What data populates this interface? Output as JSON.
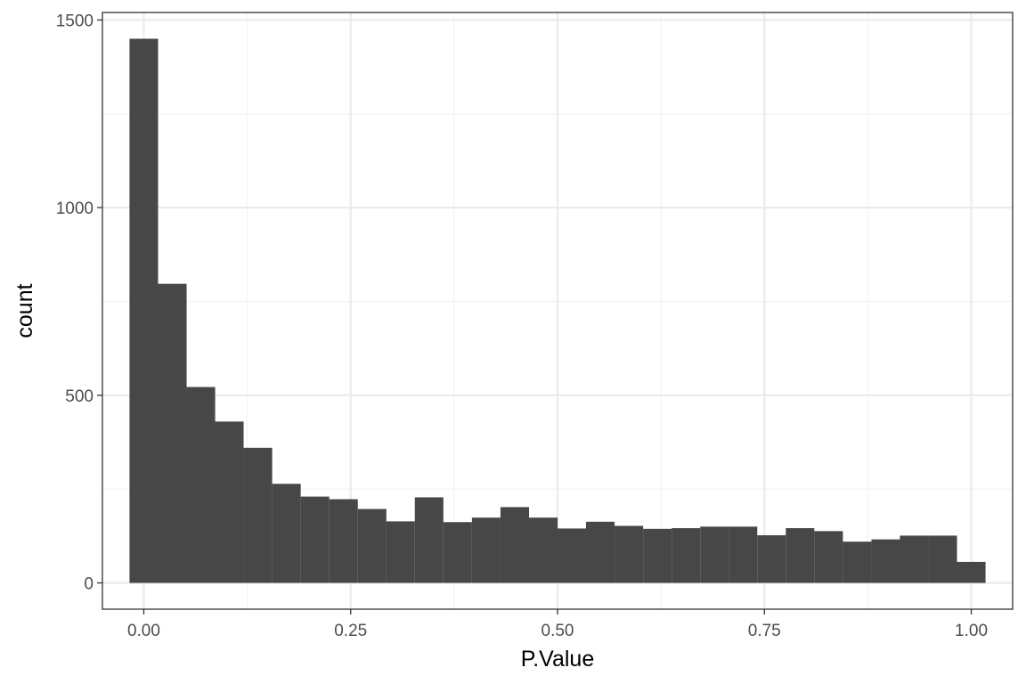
{
  "chart_data": {
    "type": "bar",
    "subtype": "histogram",
    "title": "",
    "xlabel": "P.Value",
    "ylabel": "count",
    "xlim": [
      -0.05,
      1.05
    ],
    "ylim": [
      -70,
      1520
    ],
    "x_ticks": [
      0,
      0.25,
      0.5,
      0.75,
      1
    ],
    "x_tick_labels": [
      "0.00",
      "0.25",
      "0.50",
      "0.75",
      "1.00"
    ],
    "y_ticks": [
      0,
      500,
      1000,
      1500
    ],
    "y_tick_labels": [
      "0",
      "500",
      "1000",
      "1500"
    ],
    "grid": true,
    "bin_width": 0.0345,
    "bin_centers": [
      0,
      0.0345,
      0.069,
      0.1034,
      0.1379,
      0.1724,
      0.2069,
      0.2414,
      0.2759,
      0.3103,
      0.3448,
      0.3793,
      0.4138,
      0.4483,
      0.4828,
      0.5172,
      0.5517,
      0.5862,
      0.6207,
      0.6552,
      0.6897,
      0.7241,
      0.7586,
      0.7931,
      0.8276,
      0.8621,
      0.8966,
      0.931,
      0.9655,
      1
    ],
    "values": [
      1450,
      797,
      522,
      430,
      360,
      264,
      230,
      223,
      197,
      164,
      228,
      162,
      174,
      202,
      174,
      145,
      163,
      152,
      144,
      146,
      150,
      150,
      127,
      146,
      138,
      110,
      116,
      126,
      126,
      56
    ],
    "bar_color": "#474747",
    "panel_border_color": "#333333",
    "grid_major_color": "#ebebeb",
    "grid_minor_color": "#f2f2f2"
  }
}
